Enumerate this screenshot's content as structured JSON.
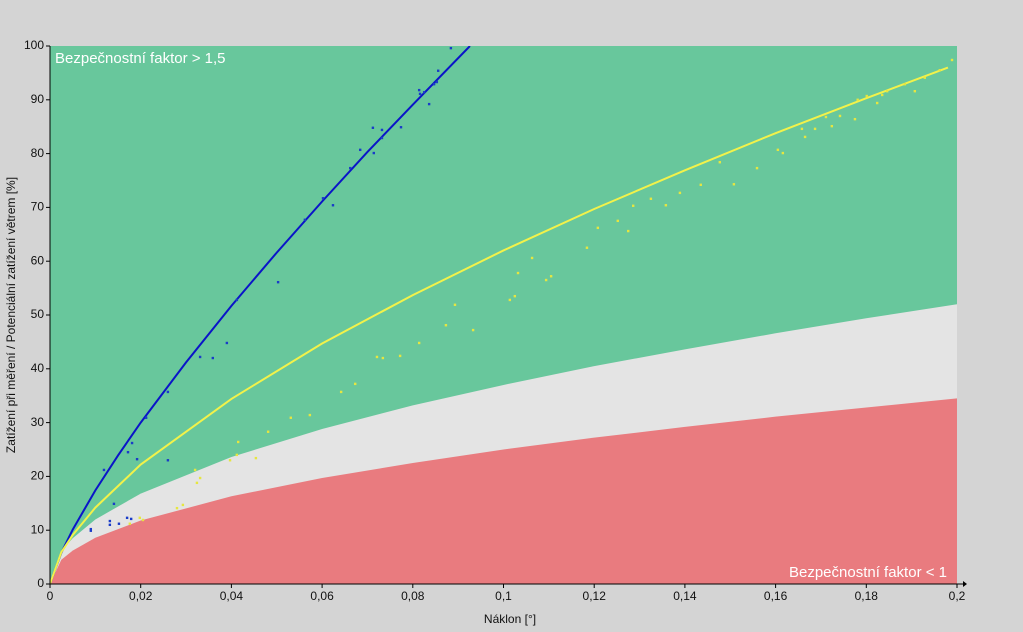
{
  "chart_data": {
    "type": "scatter",
    "xlabel": "Náklon [°]",
    "ylabel": "Zatížení při měření / Potenciální zatížení větrem [%]",
    "annotations": [
      "Bezpečnostní faktor > 1,5",
      "Bezpečnostní faktor < 1"
    ],
    "xlim": [
      0,
      0.2
    ],
    "ylim": [
      0,
      100
    ],
    "xticks": [
      0,
      {
        "value": 0.02,
        "label": "0,02"
      },
      {
        "value": 0.04,
        "label": "0,04"
      },
      {
        "value": 0.06,
        "label": "0,06"
      },
      {
        "value": 0.08,
        "label": "0,08"
      },
      {
        "value": 0.1,
        "label": "0,1"
      },
      {
        "value": 0.12,
        "label": "0,12"
      },
      {
        "value": 0.14,
        "label": "0,14"
      },
      {
        "value": 0.16,
        "label": "0,16"
      },
      {
        "value": 0.18,
        "label": "0,18"
      },
      {
        "value": 0.2,
        "label": "0,2"
      }
    ],
    "yticks": [
      0,
      10,
      20,
      30,
      40,
      50,
      60,
      70,
      80,
      90,
      100
    ],
    "background_color": "#68c79c",
    "bands": [
      {
        "color": "#e4e4e4",
        "x": [
          0,
          0.0025,
          0.005,
          0.01,
          0.02,
          0.04,
          0.06,
          0.08,
          0.1,
          0.12,
          0.14,
          0.16,
          0.18,
          0.2
        ],
        "values": [
          0,
          6.1,
          8.5,
          12.0,
          16.8,
          23.6,
          28.8,
          33.2,
          37.0,
          40.5,
          43.6,
          46.6,
          49.4,
          52
        ]
      },
      {
        "color": "#e97b7f",
        "x": [
          0,
          0.0025,
          0.005,
          0.01,
          0.02,
          0.04,
          0.06,
          0.08,
          0.1,
          0.12,
          0.14,
          0.16,
          0.18,
          0.2
        ],
        "values": [
          0,
          4.5,
          6.2,
          8.6,
          11.8,
          16.3,
          19.7,
          22.5,
          25.0,
          27.2,
          29.2,
          31.1,
          32.8,
          34.5
        ]
      }
    ],
    "curves": [
      {
        "color": "#0a14c8",
        "x": [
          0,
          0.0025,
          0.005,
          0.01,
          0.015,
          0.02,
          0.03,
          0.04,
          0.05,
          0.06,
          0.07,
          0.08,
          0.0926
        ],
        "values": [
          0,
          5.8,
          10.1,
          17.4,
          23.9,
          30.0,
          41.2,
          51.7,
          61.6,
          71.1,
          80.3,
          89.1,
          100
        ]
      },
      {
        "color": "#f2f24a",
        "x": [
          0,
          0.0025,
          0.005,
          0.01,
          0.02,
          0.04,
          0.06,
          0.08,
          0.1,
          0.12,
          0.14,
          0.16,
          0.18,
          0.198
        ],
        "values": [
          0,
          5.9,
          9.1,
          14.2,
          22.2,
          34.4,
          44.7,
          53.7,
          62.0,
          69.7,
          76.9,
          83.8,
          90.3,
          96
        ]
      }
    ],
    "series": [
      {
        "color": "#1a3cc8",
        "x": [
          0.009,
          0.009,
          0.0119,
          0.0132,
          0.0132,
          0.0141,
          0.0152,
          0.017,
          0.0172,
          0.0181,
          0.0179,
          0.0192,
          0.0212,
          0.026,
          0.026,
          0.0331,
          0.0359,
          0.039,
          0.0412,
          0.0503,
          0.0562,
          0.0602,
          0.0624,
          0.0662,
          0.0684,
          0.0712,
          0.0714,
          0.0732,
          0.0732,
          0.0774,
          0.0814,
          0.0816,
          0.0825,
          0.0836,
          0.0847,
          0.0853,
          0.0856,
          0.0884
        ],
        "values": [
          9.9,
          10.2,
          21.2,
          11.7,
          11.0,
          14.9,
          11.2,
          12.3,
          24.5,
          26.2,
          12.1,
          23.2,
          30.9,
          35.7,
          23.0,
          42.2,
          42.0,
          44.8,
          52.8,
          56.1,
          67.7,
          71.7,
          70.4,
          77.3,
          80.7,
          84.8,
          80.1,
          84.4,
          82.9,
          84.9,
          91.8,
          91.1,
          91.4,
          89.2,
          92.9,
          93.3,
          95.4,
          99.6
        ]
      },
      {
        "color": "#e6e640",
        "x": [
          0.0176,
          0.0198,
          0.0205,
          0.028,
          0.0293,
          0.032,
          0.0324,
          0.0331,
          0.0397,
          0.0415,
          0.0412,
          0.0454,
          0.0481,
          0.0531,
          0.0573,
          0.0642,
          0.0673,
          0.0721,
          0.0734,
          0.0772,
          0.0814,
          0.0873,
          0.0893,
          0.0933,
          0.1014,
          0.1025,
          0.1032,
          0.1063,
          0.1094,
          0.1105,
          0.1184,
          0.1208,
          0.1252,
          0.1275,
          0.1286,
          0.1325,
          0.1358,
          0.1389,
          0.1435,
          0.1477,
          0.1508,
          0.1559,
          0.1605,
          0.1616,
          0.1658,
          0.1665,
          0.1687,
          0.1711,
          0.1724,
          0.1742,
          0.1775,
          0.1781,
          0.1801,
          0.1824,
          0.1835,
          0.1846,
          0.1885,
          0.1907,
          0.1929,
          0.1962,
          0.1989
        ],
        "values": [
          11.2,
          12.3,
          11.9,
          14.1,
          14.7,
          21.2,
          18.8,
          19.7,
          23.0,
          26.4,
          24.0,
          23.4,
          28.3,
          30.9,
          31.4,
          35.7,
          37.2,
          42.2,
          42.0,
          42.4,
          44.8,
          48.1,
          51.9,
          47.2,
          52.8,
          53.5,
          57.8,
          60.6,
          56.5,
          57.2,
          62.5,
          66.2,
          67.5,
          65.6,
          70.3,
          71.6,
          70.4,
          72.7,
          74.2,
          78.4,
          74.3,
          77.3,
          80.7,
          80.1,
          84.6,
          83.1,
          84.6,
          86.8,
          85.1,
          87.0,
          86.4,
          90.0,
          90.7,
          89.4,
          90.9,
          91.6,
          92.9,
          91.6,
          94.1,
          95.5,
          97.4
        ]
      }
    ]
  }
}
